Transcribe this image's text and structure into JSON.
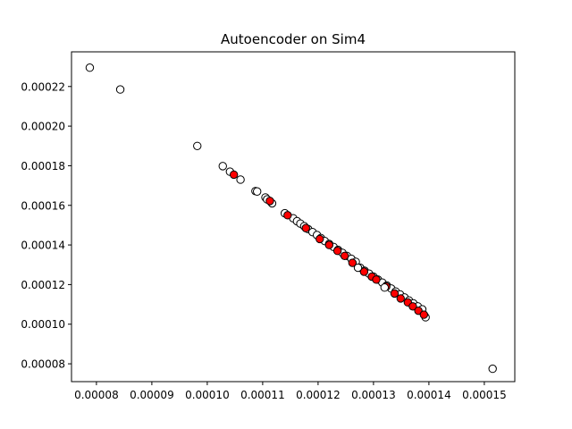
{
  "chart_data": {
    "type": "scatter",
    "title": "Autoencoder on Sim4",
    "xlabel": "",
    "ylabel": "",
    "xlim": [
      7.55e-05,
      0.0001555
    ],
    "ylim": [
      7.1e-05,
      0.0002375
    ],
    "grid": false,
    "legend": "none",
    "x_ticks": [
      "0.00008",
      "0.00009",
      "0.00010",
      "0.00011",
      "0.00012",
      "0.00013",
      "0.00014",
      "0.00015"
    ],
    "x_tick_values": [
      8e-05,
      9e-05,
      0.0001,
      0.00011,
      0.00012,
      0.00013,
      0.00014,
      0.00015
    ],
    "y_ticks": [
      "0.00008",
      "0.00010",
      "0.00012",
      "0.00014",
      "0.00016",
      "0.00018",
      "0.00020",
      "0.00022"
    ],
    "y_tick_values": [
      8e-05,
      0.0001,
      0.00012,
      0.00014,
      0.00016,
      0.00018,
      0.0002,
      0.00022
    ],
    "series": [
      {
        "color": "#ffffff",
        "edge_color": "#000000",
        "x": [
          7.88e-05,
          8.43e-05,
          9.82e-05,
          0.0001028,
          0.0001041,
          0.000106,
          0.0001087,
          0.000109,
          0.0001105,
          0.0001108,
          0.0001117,
          0.000114,
          0.0001155,
          0.0001162,
          0.0001168,
          0.0001175,
          0.0001182,
          0.000119,
          0.0001198,
          0.0001205,
          0.0001212,
          0.000122,
          0.0001228,
          0.0001236,
          0.0001244,
          0.0001252,
          0.000126,
          0.0001268,
          0.0001276,
          0.0001284,
          0.0001292,
          0.00013,
          0.0001308,
          0.0001316,
          0.0001324,
          0.0001332,
          0.000134,
          0.0001348,
          0.0001356,
          0.0001364,
          0.0001372,
          0.000138,
          0.0001388,
          0.0001394,
          0.0001515
        ],
        "y": [
          0.0002295,
          0.0002185,
          0.00019,
          0.0001798,
          0.000177,
          0.000173,
          0.0001672,
          0.000167,
          0.000164,
          0.000163,
          0.000161,
          0.000156,
          0.0001535,
          0.000152,
          0.0001508,
          0.0001495,
          0.000148,
          0.0001465,
          0.000145,
          0.0001435,
          0.000142,
          0.0001405,
          0.000139,
          0.0001375,
          0.000136,
          0.0001345,
          0.000133,
          0.0001315,
          0.0001285,
          0.000127,
          0.0001255,
          0.000124,
          0.0001225,
          0.000121,
          0.0001195,
          0.000118,
          0.0001165,
          0.000115,
          0.0001135,
          0.000112,
          0.0001105,
          0.000109,
          0.0001075,
          0.0001035,
          7.75e-05
        ]
      },
      {
        "color": "#ff0000",
        "edge_color": "#000000",
        "x": [
          0.0001048,
          0.0001113,
          0.0001145,
          0.0001178,
          0.0001203,
          0.000122,
          0.0001235,
          0.0001248,
          0.0001262,
          0.0001283,
          0.0001297,
          0.0001305,
          0.0001323,
          0.0001338,
          0.0001349,
          0.0001362,
          0.0001371,
          0.0001381,
          0.0001391
        ],
        "y": [
          0.0001755,
          0.0001622,
          0.000155,
          0.0001485,
          0.000143,
          0.00014,
          0.000137,
          0.0001345,
          0.000131,
          0.0001265,
          0.000124,
          0.0001225,
          0.000119,
          0.0001155,
          0.000113,
          0.000111,
          0.000109,
          0.0001068,
          0.0001048
        ]
      },
      {
        "color": "#ffffff",
        "edge_color": "#000000",
        "x": [
          0.0001272,
          0.000132
        ],
        "y": [
          0.0001285,
          0.0001185
        ]
      }
    ]
  }
}
